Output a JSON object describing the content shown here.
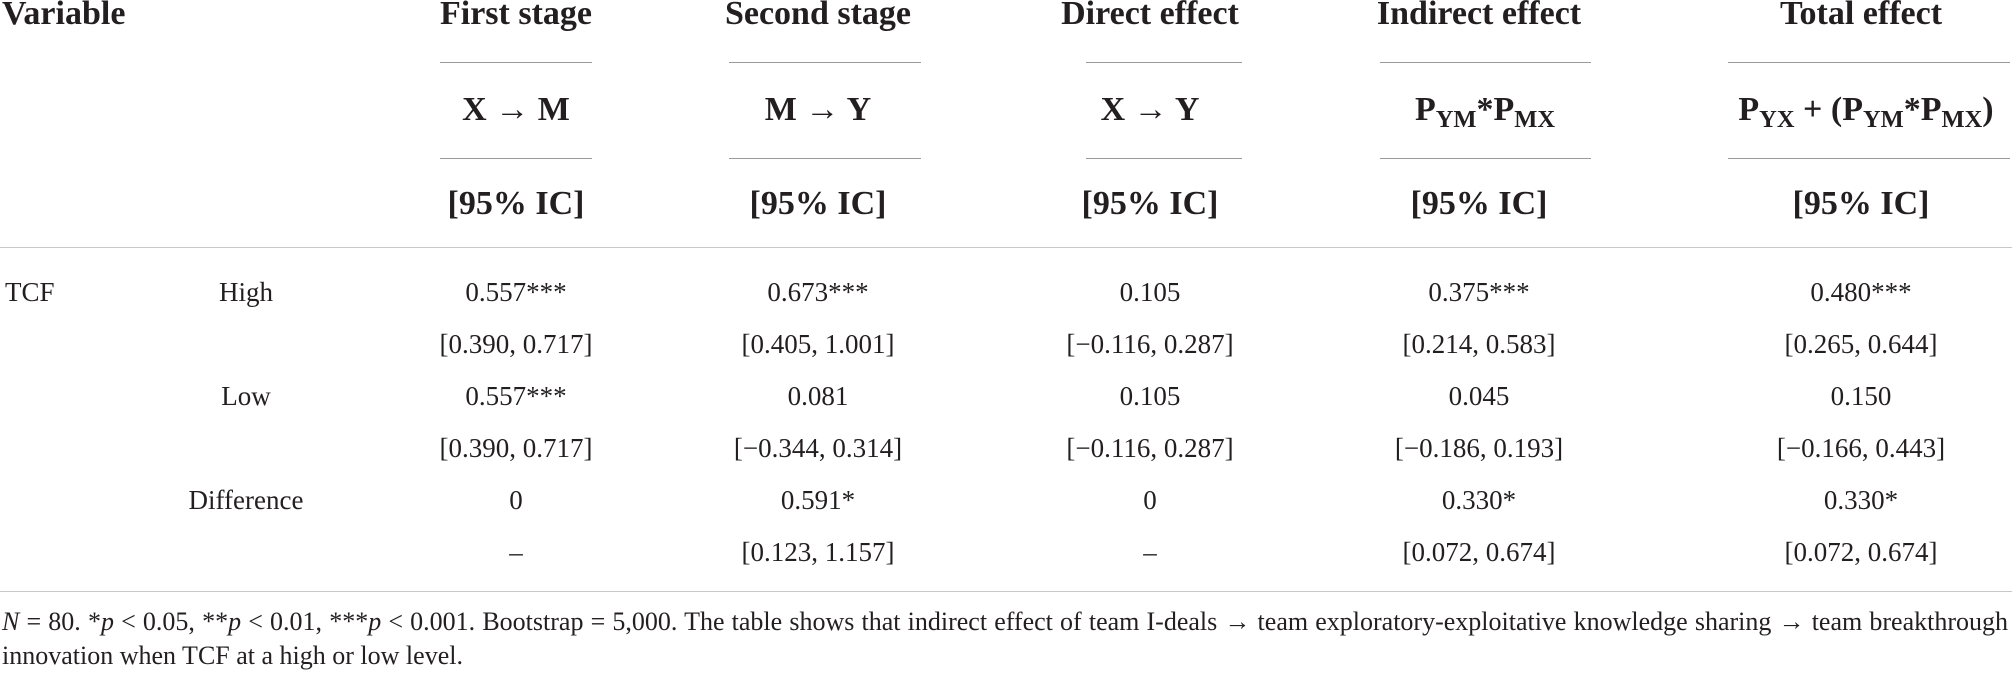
{
  "header": {
    "variable": "Variable",
    "columns": [
      {
        "stage": "First stage",
        "path": "X → M",
        "ci": "[95% IC]"
      },
      {
        "stage": "Second stage",
        "path": "M → Y",
        "ci": "[95% IC]"
      },
      {
        "stage": "Direct effect",
        "path": "X → Y",
        "ci": "[95% IC]"
      },
      {
        "stage": "Indirect effect",
        "ci": "[95% IC]"
      },
      {
        "stage": "Total effect",
        "ci": "[95% IC]"
      }
    ],
    "indirect_formula": {
      "P": "P",
      "YM": "YM",
      "star": "*",
      "MX": "MX"
    },
    "total_formula": {
      "P": "P",
      "YX": "YX",
      "plus_open": " + (",
      "YM": "YM",
      "star": "*",
      "MX": "MX",
      "close": ")"
    }
  },
  "rows": [
    {
      "group": "TCF",
      "level": "High",
      "estimates": [
        "0.557***",
        "0.673***",
        "0.105",
        "0.375***",
        "0.480***"
      ],
      "cis": [
        "[0.390, 0.717]",
        "[0.405, 1.001]",
        "[−0.116, 0.287]",
        "[0.214, 0.583]",
        "[0.265, 0.644]"
      ]
    },
    {
      "group": "",
      "level": "Low",
      "estimates": [
        "0.557***",
        "0.081",
        "0.105",
        "0.045",
        "0.150"
      ],
      "cis": [
        "[0.390, 0.717]",
        "[−0.344, 0.314]",
        "[−0.116, 0.287]",
        "[−0.186, 0.193]",
        "[−0.166, 0.443]"
      ]
    },
    {
      "group": "",
      "level": "Difference",
      "estimates": [
        "0",
        "0.591*",
        "0",
        "0.330*",
        "0.330*"
      ],
      "cis": [
        "–",
        "[0.123, 1.157]",
        "–",
        "[0.072, 0.674]",
        "[0.072, 0.674]"
      ]
    }
  ],
  "footnote": {
    "n_italic": "N",
    "n_rest": " = 80. *",
    "p1": "p",
    "t1": " < 0.05, **",
    "p2": "p",
    "t2": " < 0.01, ***",
    "p3": "p",
    "t3": " < 0.001. Bootstrap = 5,000. The table shows that indirect effect of team I-deals → team exploratory-exploitative knowledge sharing → team breakthrough innovation when TCF at a high or low level."
  }
}
